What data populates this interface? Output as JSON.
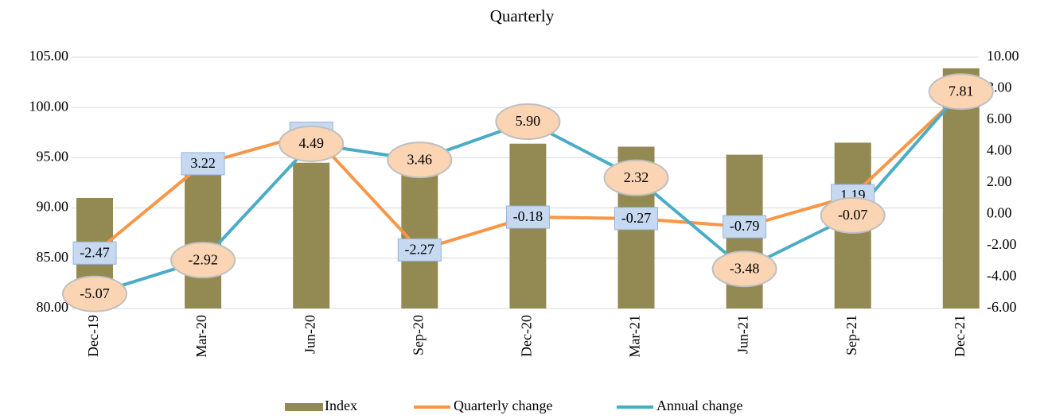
{
  "chart_data": {
    "type": "combo",
    "title": "Quarterly",
    "categories": [
      "Dec-19",
      "Mar-20",
      "Jun-20",
      "Sep-20",
      "Dec-20",
      "Mar-21",
      "Jun-21",
      "Sep-21",
      "Dec-21"
    ],
    "series": [
      {
        "name": "Index",
        "type": "bar",
        "color": "#938953",
        "values": [
          91.0,
          93.5,
          94.5,
          94.5,
          96.4,
          96.1,
          95.3,
          96.5,
          103.9
        ]
      },
      {
        "name": "Quarterly change",
        "type": "line",
        "axis": "y2",
        "color": "#f79646",
        "values": [
          -2.47,
          3.22,
          5.16,
          -2.27,
          -0.18,
          -0.27,
          -0.79,
          1.19,
          7.69
        ],
        "value_labels": [
          "-2.47",
          "3.22",
          "5.16",
          "-2.27",
          "-0.18",
          "-0.27",
          "-0.79",
          "1.19",
          "7.69"
        ]
      },
      {
        "name": "Annual change",
        "type": "line",
        "axis": "y2",
        "color": "#4bacc6",
        "values": [
          -5.07,
          -2.92,
          4.49,
          3.46,
          5.9,
          2.32,
          -3.48,
          -0.07,
          7.81
        ],
        "value_labels": [
          "-5.07",
          "-2.92",
          "4.49",
          "3.46",
          "5.90",
          "2.32",
          "-3.48",
          "-0.07",
          "7.81"
        ]
      }
    ],
    "ylim": [
      80,
      105
    ],
    "yticks": [
      {
        "value": 80,
        "label": "80.00"
      },
      {
        "value": 85,
        "label": "85.00"
      },
      {
        "value": 90,
        "label": "90.00"
      },
      {
        "value": 95,
        "label": "95.00"
      },
      {
        "value": 100,
        "label": "100.00"
      },
      {
        "value": 105,
        "label": "105.00"
      }
    ],
    "y2lim": [
      -6,
      10
    ],
    "y2ticks": [
      {
        "value": -6,
        "label": "-6.00"
      },
      {
        "value": -4,
        "label": "-4.00"
      },
      {
        "value": -2,
        "label": "-2.00"
      },
      {
        "value": 0,
        "label": "0.00"
      },
      {
        "value": 2,
        "label": "2.00"
      },
      {
        "value": 4,
        "label": "4.00"
      },
      {
        "value": 6,
        "label": "6.00"
      },
      {
        "value": 8,
        "label": "8.00"
      },
      {
        "value": 10,
        "label": "10.00"
      }
    ],
    "grid": true
  }
}
